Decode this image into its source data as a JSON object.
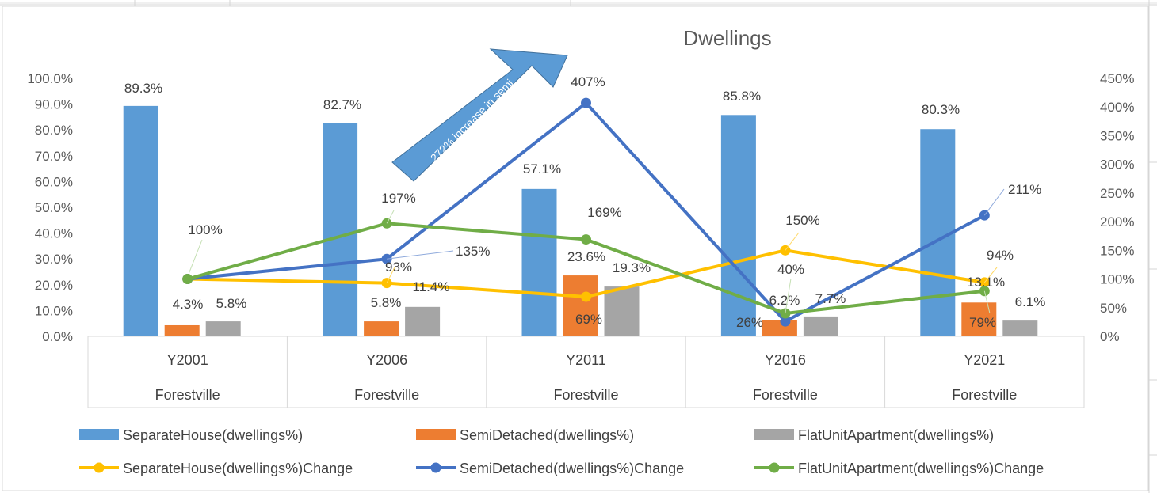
{
  "chart_data": {
    "type": "bar",
    "title": "Dwellings",
    "categories": [
      "Y2001",
      "Y2006",
      "Y2011",
      "Y2016",
      "Y2021"
    ],
    "category_group": [
      "Forestville",
      "Forestville",
      "Forestville",
      "Forestville",
      "Forestville"
    ],
    "y_left": {
      "min": 0,
      "max": 100,
      "step": 10,
      "tick_labels": [
        "0.0%",
        "10.0%",
        "20.0%",
        "30.0%",
        "40.0%",
        "50.0%",
        "60.0%",
        "70.0%",
        "80.0%",
        "90.0%",
        "100.0%"
      ]
    },
    "y_right": {
      "min": 0,
      "max": 450,
      "step": 50,
      "tick_labels": [
        "0%",
        "50%",
        "100%",
        "150%",
        "200%",
        "250%",
        "300%",
        "350%",
        "400%",
        "450%"
      ]
    },
    "bar_series": [
      {
        "name": "SeparateHouse(dwellings%)",
        "color": "#5B9BD5",
        "values": [
          89.3,
          82.7,
          57.1,
          85.8,
          80.3
        ],
        "labels": [
          "89.3%",
          "82.7%",
          "57.1%",
          "85.8%",
          "80.3%"
        ]
      },
      {
        "name": "SemiDetached(dwellings%)",
        "color": "#ED7D31",
        "values": [
          4.3,
          5.8,
          23.6,
          6.2,
          13.1
        ],
        "labels": [
          "4.3%",
          "5.8%",
          "23.6%",
          "6.2%",
          "13.1%"
        ]
      },
      {
        "name": "FlatUnitApartment(dwellings%)",
        "color": "#A5A5A5",
        "values": [
          5.8,
          11.4,
          19.3,
          7.7,
          6.1
        ],
        "labels": [
          "5.8%",
          "11.4%",
          "19.3%",
          "7.7%",
          "6.1%"
        ]
      }
    ],
    "line_series": [
      {
        "name": "SeparateHouse(dwellings%)Change",
        "color": "#FFC000",
        "values": [
          100,
          93,
          69,
          150,
          94
        ],
        "labels": [
          "100%",
          "93%",
          "69%",
          "150%",
          "94%"
        ]
      },
      {
        "name": "SemiDetached(dwellings%)Change",
        "color": "#4472C4",
        "values": [
          100,
          135,
          407,
          26,
          211
        ],
        "labels": [
          "100%",
          "135%",
          "407%",
          "26%",
          "211%"
        ]
      },
      {
        "name": "FlatUnitApartment(dwellings%)Change",
        "color": "#70AD47",
        "values": [
          100,
          197,
          169,
          40,
          79
        ],
        "labels": [
          "100%",
          "197%",
          "169%",
          "40%",
          "79%"
        ]
      }
    ],
    "annotation": {
      "text_line1": "272% increase in semi",
      "text_line2": "detached dwellings"
    },
    "legend_position": "bottom"
  }
}
